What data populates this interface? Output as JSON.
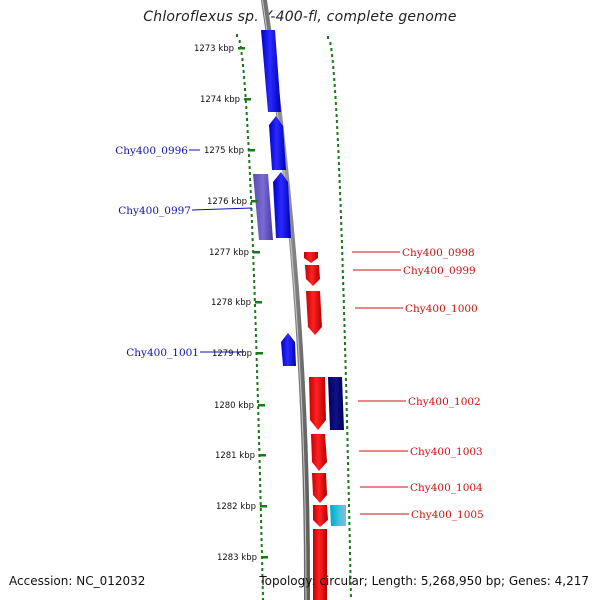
{
  "title": "Chloroflexus sp. Y-400-fl, complete genome",
  "footer": {
    "accession": "Accession: NC_012032",
    "summary": "Topology: circular; Length: 5,268,950 bp; Genes: 4,217"
  },
  "axis_labels": [
    "1273 kbp",
    "1274 kbp",
    "1275 kbp",
    "1276 kbp",
    "1277 kbp",
    "1278 kbp",
    "1279 kbp",
    "1280 kbp",
    "1281 kbp",
    "1282 kbp",
    "1283 kbp"
  ],
  "left_gene_labels": [
    "Chy400_0996",
    "Chy400_0997",
    "Chy400_1001"
  ],
  "right_gene_labels": [
    "Chy400_0998",
    "Chy400_0999",
    "Chy400_1000",
    "Chy400_1002",
    "Chy400_1003",
    "Chy400_1004",
    "Chy400_1005"
  ],
  "colors": {
    "forward": "#0a0aee",
    "reverse": "#ee0a0a",
    "tick": "#1a7a1a",
    "leader_left": "#1010b0",
    "leader_right": "#cc1010"
  }
}
